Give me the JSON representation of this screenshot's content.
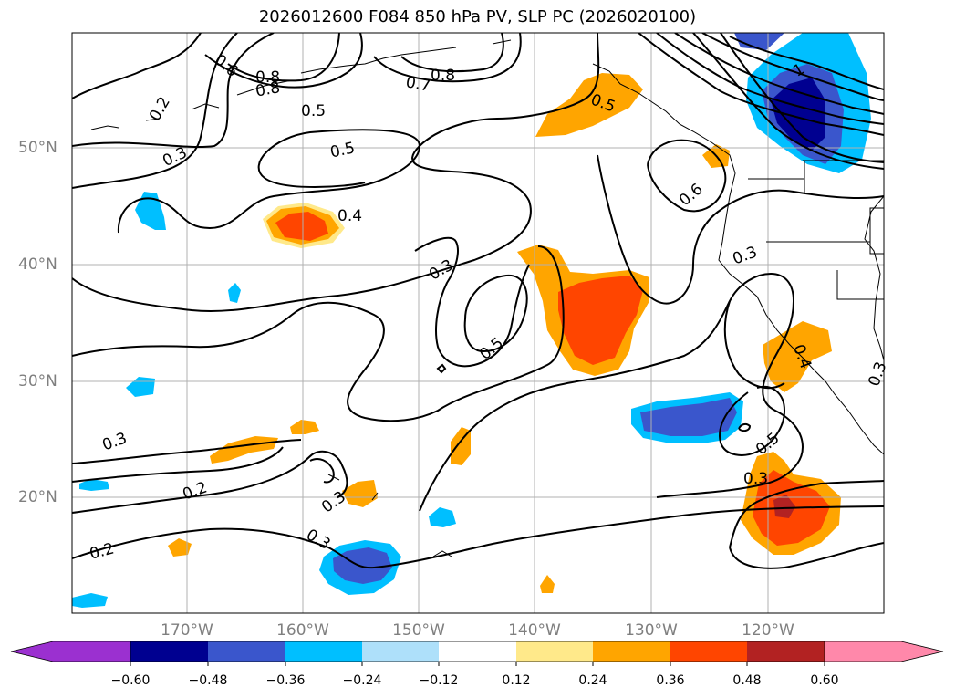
{
  "title": "2026012600 F084 850 hPa PV, SLP PC (2026020100)",
  "map": {
    "lat_labels": [
      "50°N",
      "40°N",
      "30°N",
      "20°N"
    ],
    "lon_labels": [
      "170°W",
      "160°W",
      "150°W",
      "140°W",
      "130°W",
      "120°W"
    ],
    "contour_labels": [
      "0.2",
      "0.3",
      "0.6",
      "0.8",
      "0.8",
      "0.7",
      "0.8",
      "0.5",
      "0.5",
      "0.5",
      "0.4",
      "0.3",
      "0.6",
      "0.3",
      "0.3",
      "0.5",
      "0.4",
      "0.5",
      "0.3",
      "0.3",
      "0.2",
      "0.2",
      "0.3",
      "0.3",
      "1"
    ]
  },
  "colorbar": {
    "ticks": [
      "−0.60",
      "−0.48",
      "−0.36",
      "−0.24",
      "−0.12",
      "0.12",
      "0.24",
      "0.36",
      "0.48",
      "0.60"
    ],
    "colors": [
      "#9b30d0",
      "#000090",
      "#3a56cc",
      "#00bfff",
      "#aee0fa",
      "#ffffff",
      "#ffe98a",
      "#ffa500",
      "#ff4500",
      "#b22222",
      "#ff88aa"
    ]
  }
}
